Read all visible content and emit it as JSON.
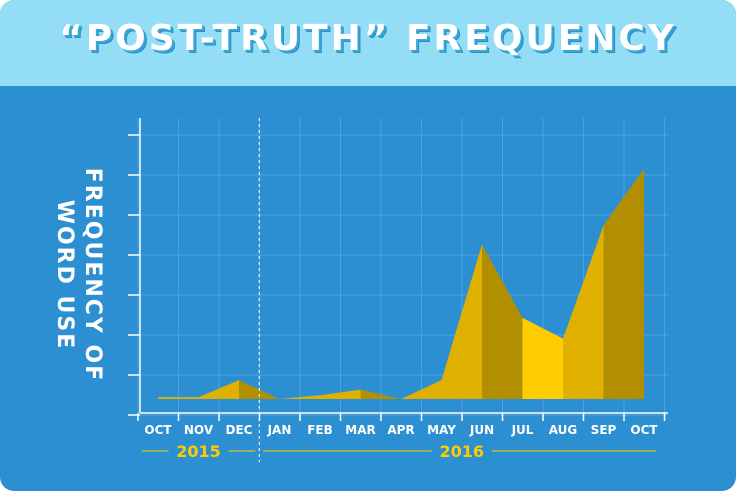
{
  "chart_data": {
    "type": "area",
    "title": "“POST-TRUTH” FREQUENCY",
    "ylabel_lines": [
      "FREQUENCY OF",
      "WORD USE"
    ],
    "categories": [
      "OCT",
      "NOV",
      "DEC",
      "JAN",
      "FEB",
      "MAR",
      "APR",
      "MAY",
      "JUN",
      "JUL",
      "AUG",
      "SEP",
      "OCT"
    ],
    "values": [
      0.05,
      0.05,
      0.5,
      0.0,
      0.1,
      0.25,
      0.0,
      0.5,
      4.1,
      2.15,
      1.6,
      4.6,
      6.1
    ],
    "ylim": [
      0,
      7
    ],
    "grid": true,
    "years": [
      {
        "label": "2015",
        "start": 0,
        "end": 2
      },
      {
        "label": "2016",
        "start": 3,
        "end": 12
      }
    ],
    "colors": {
      "background": "#2c8fd1",
      "header": "#93ddf7",
      "grid": "#4ea3de",
      "axis": "#ffffff",
      "year": "#ffcc00",
      "fill_light": "#ffcc00",
      "fill_mid": "#e0b000",
      "fill_dark": "#b28f00"
    }
  }
}
